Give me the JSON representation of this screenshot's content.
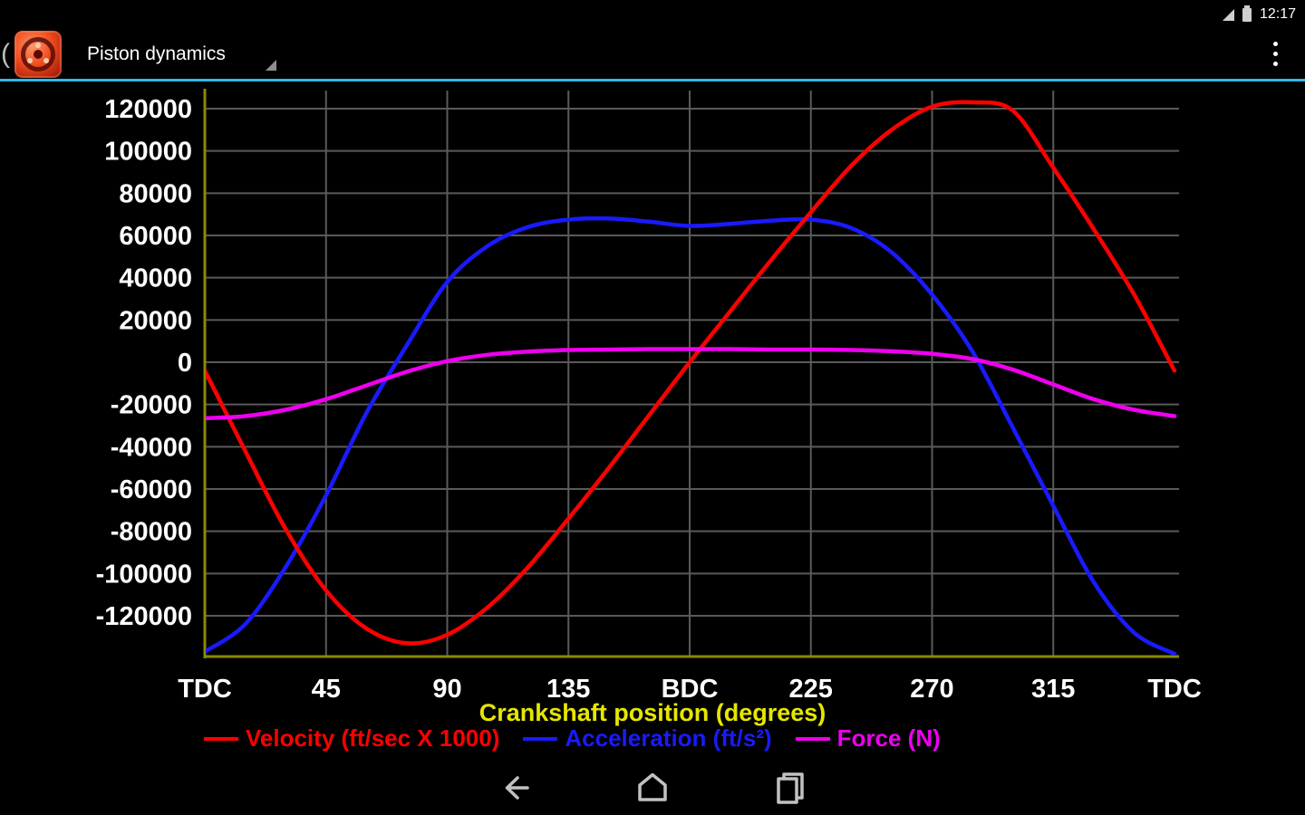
{
  "status_bar": {
    "time": "12:17"
  },
  "action_bar": {
    "title": "Piston dynamics",
    "accent_color": "#33b5e5"
  },
  "chart_data": {
    "type": "line",
    "title": "",
    "xlabel": "Crankshaft position (degrees)",
    "ylabel": "",
    "x": [
      0,
      15,
      30,
      45,
      60,
      75,
      90,
      105,
      120,
      135,
      150,
      165,
      180,
      195,
      210,
      225,
      240,
      255,
      270,
      285,
      300,
      315,
      330,
      345,
      360
    ],
    "x_ticks": [
      0,
      45,
      90,
      135,
      180,
      225,
      270,
      315,
      360
    ],
    "x_tick_labels": [
      "TDC",
      "45",
      "90",
      "135",
      "BDC",
      "225",
      "270",
      "315",
      "TDC"
    ],
    "y_ticks": [
      120000,
      100000,
      80000,
      60000,
      40000,
      20000,
      0,
      -20000,
      -40000,
      -60000,
      -80000,
      -100000,
      -120000
    ],
    "ylim": [
      -140000,
      129000
    ],
    "grid": true,
    "legend_position": "bottom",
    "background": "#000000",
    "grid_color": "#5a5a5a",
    "axis_color": "#8a8a00",
    "tick_label_color": "#ffffff",
    "xlabel_color": "#e6e600",
    "series": [
      {
        "name": "Velocity (ft/sec X 1000)",
        "color": "#ff0000",
        "values": [
          -4000,
          -42000,
          -79000,
          -108000,
          -126000,
          -133000,
          -129000,
          -116000,
          -97000,
          -74000,
          -50000,
          -25000,
          0,
          24000,
          48000,
          71000,
          93000,
          110000,
          121000,
          123000,
          119000,
          92000,
          63000,
          32000,
          -4000
        ]
      },
      {
        "name": "Acceleration (ft/s²)",
        "color": "#1a1aff",
        "values": [
          -137000,
          -124000,
          -97000,
          -63000,
          -24000,
          8000,
          38000,
          55000,
          64000,
          67500,
          68000,
          66500,
          64500,
          65500,
          67000,
          67500,
          63500,
          52000,
          32000,
          5000,
          -31000,
          -68000,
          -104000,
          -128000,
          -138000
        ]
      },
      {
        "name": "Force (N)",
        "color": "#ee00ee",
        "values": [
          -26500,
          -25500,
          -22500,
          -17500,
          -11000,
          -4500,
          500,
          3500,
          5000,
          5800,
          6000,
          6200,
          6200,
          6200,
          6000,
          6000,
          5800,
          5200,
          4000,
          1500,
          -3500,
          -10500,
          -17500,
          -22500,
          -25500
        ]
      }
    ]
  },
  "nav_bar": {
    "icons": [
      "back-icon",
      "home-icon",
      "recents-icon"
    ]
  }
}
